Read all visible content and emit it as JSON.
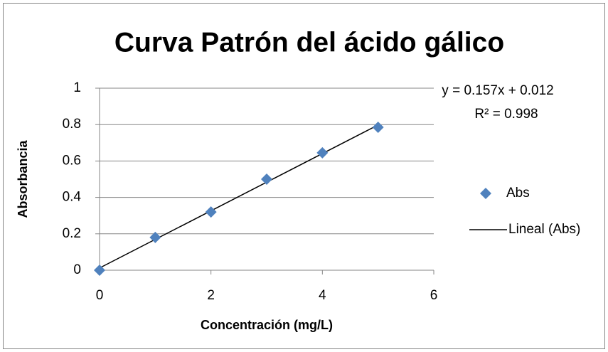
{
  "chart_data": {
    "type": "scatter",
    "title": "Curva Patrón del ácido gálico",
    "x_label": "Concentración (mg/L)",
    "y_label": "Absorbancia",
    "x": [
      0,
      1,
      2,
      3,
      4,
      5
    ],
    "series": [
      {
        "name": "Abs",
        "color": "#4f81bd",
        "values": [
          0,
          0.18,
          0.32,
          0.5,
          0.645,
          0.785
        ]
      }
    ],
    "trendline": {
      "name": "Lineal (Abs)",
      "color": "#000000",
      "equation": "y = 0.157x + 0.012",
      "r2": "R² = 0.998"
    },
    "xlim": [
      0,
      6
    ],
    "xticks": [
      0,
      2,
      4,
      6
    ],
    "ylim": [
      0,
      1
    ],
    "yticks": [
      0,
      0.2,
      0.4,
      0.6,
      0.8,
      1
    ],
    "grid": true,
    "legend": "right"
  }
}
